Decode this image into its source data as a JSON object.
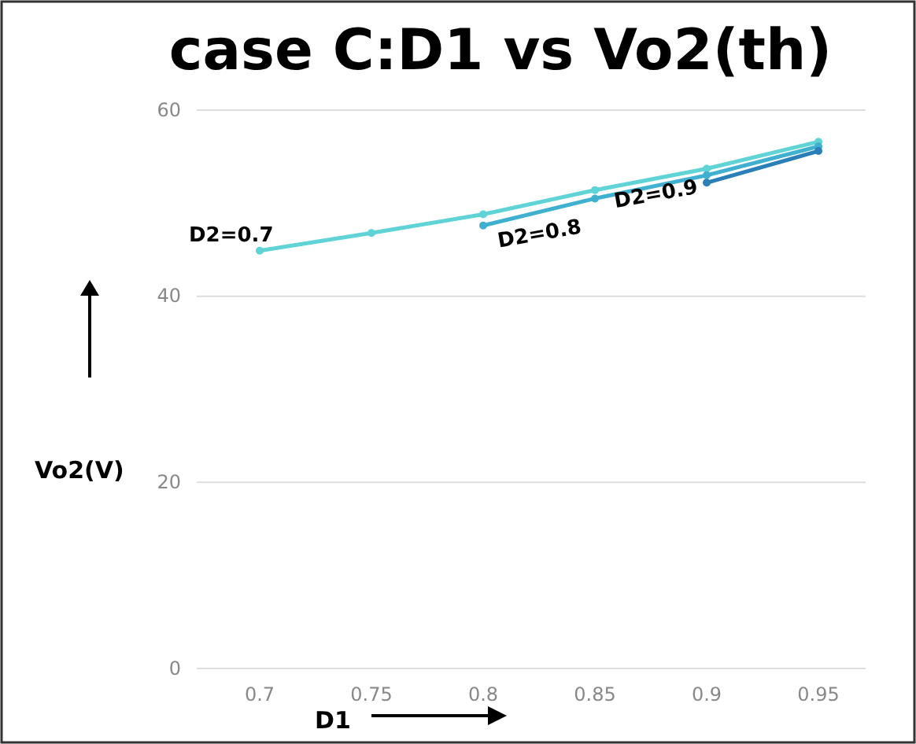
{
  "chart_data": {
    "type": "line",
    "title": "case C:D1 vs Vo2(th)",
    "xlabel": "D1",
    "ylabel": "Vo2(V)",
    "categories": [
      "0.7",
      "0.75",
      "0.8",
      "0.85",
      "0.9",
      "0.95"
    ],
    "series": [
      {
        "name": "D2=0.7",
        "color": "#5fd3d6",
        "values": [
          44.9,
          46.8,
          48.8,
          51.4,
          53.7,
          56.6
        ]
      },
      {
        "name": "D2=0.8",
        "color": "#3fb0cf",
        "values": [
          null,
          null,
          47.6,
          50.5,
          53.0,
          56.1
        ]
      },
      {
        "name": "D2=0.9",
        "color": "#2a7fb8",
        "values": [
          null,
          null,
          null,
          null,
          52.2,
          55.6
        ]
      }
    ],
    "ylim": [
      0,
      60
    ],
    "yticks": [
      0,
      20,
      40,
      60
    ],
    "grid": "y",
    "marker": "circle",
    "line_style": "solid"
  }
}
